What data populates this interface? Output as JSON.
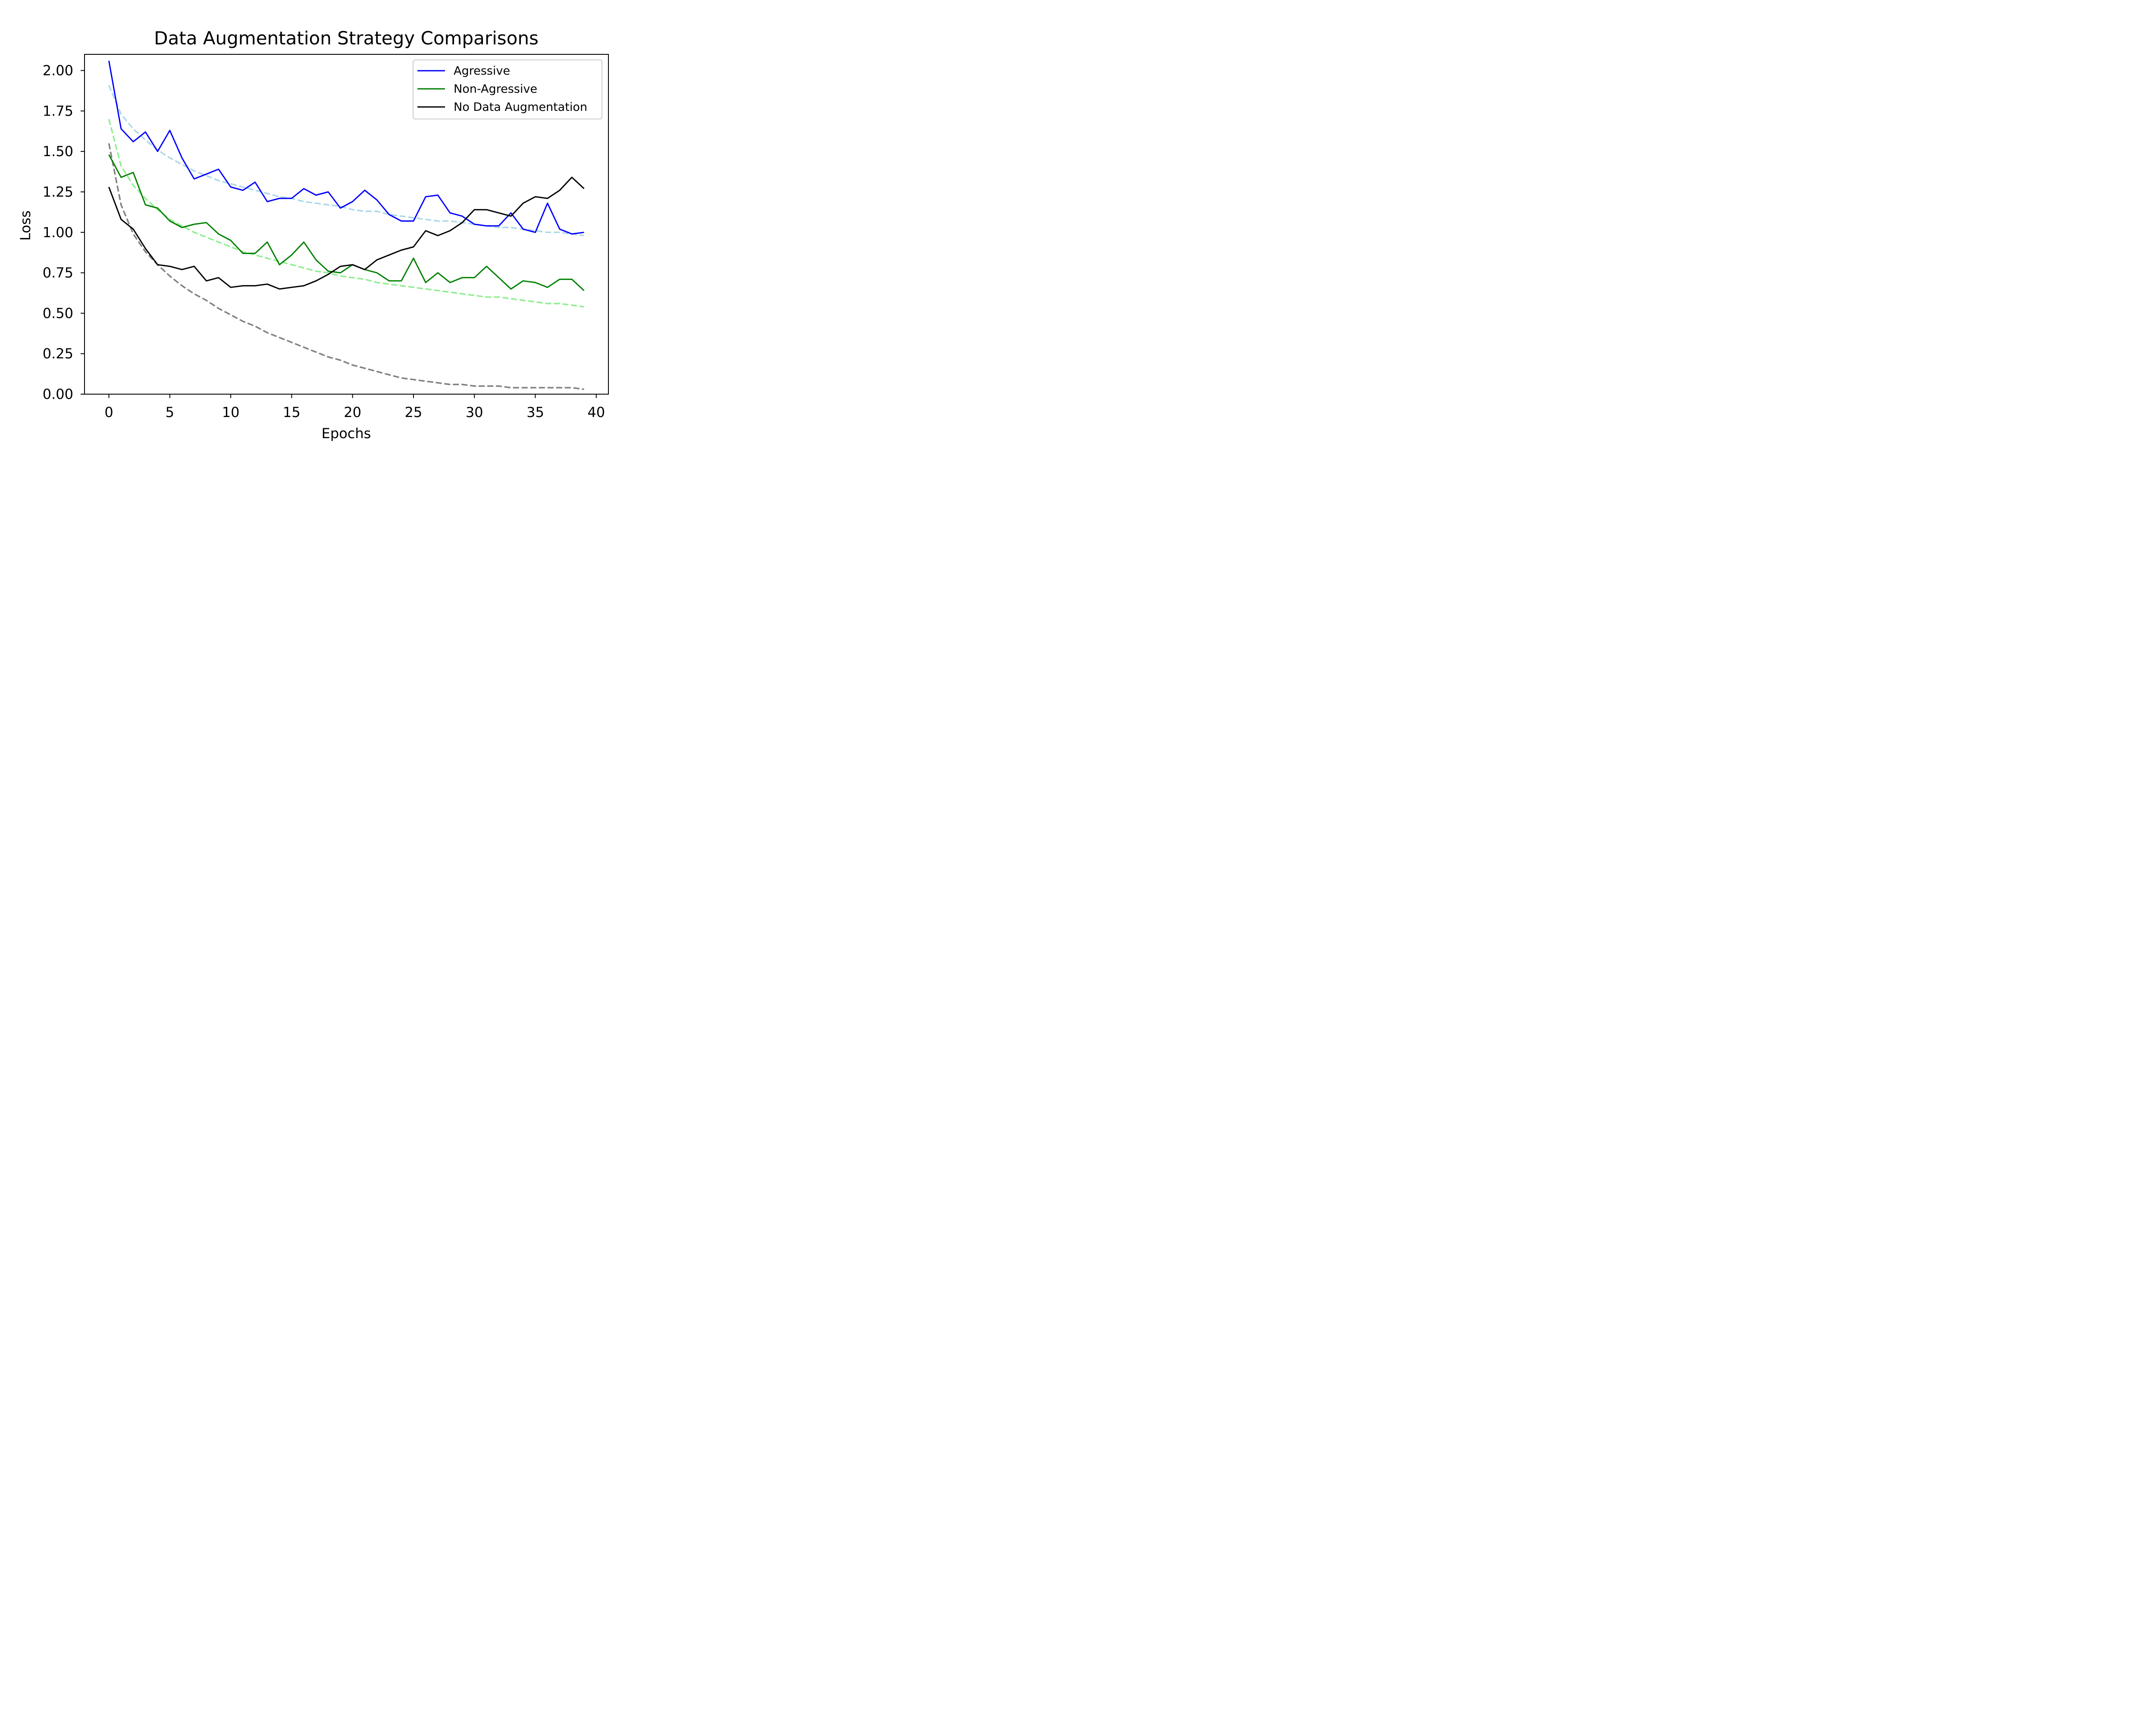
{
  "chart_data": {
    "type": "line",
    "title": "Data Augmentation Strategy Comparisons",
    "xlabel": "Epochs",
    "ylabel": "Loss",
    "xlim": [
      -2,
      41
    ],
    "ylim": [
      0,
      2.1
    ],
    "xticks": [
      0,
      5,
      10,
      15,
      20,
      25,
      30,
      35,
      40
    ],
    "xtick_labels": [
      "0",
      "5",
      "10",
      "15",
      "20",
      "25",
      "30",
      "35",
      "40"
    ],
    "yticks": [
      0,
      0.25,
      0.5,
      0.75,
      1.0,
      1.25,
      1.5,
      1.75,
      2.0
    ],
    "ytick_labels": [
      "0.00",
      "0.25",
      "0.50",
      "0.75",
      "1.00",
      "1.25",
      "1.50",
      "1.75",
      "2.00"
    ],
    "grid": false,
    "legend_position": "top-right",
    "x": [
      0,
      1,
      2,
      3,
      4,
      5,
      6,
      7,
      8,
      9,
      10,
      11,
      12,
      13,
      14,
      15,
      16,
      17,
      18,
      19,
      20,
      21,
      22,
      23,
      24,
      25,
      26,
      27,
      28,
      29,
      30,
      31,
      32,
      33,
      34,
      35,
      36,
      37,
      38,
      39
    ],
    "series": [
      {
        "name": "Agressive",
        "color": "#0000ff",
        "style": "solid",
        "values": [
          2.06,
          1.64,
          1.56,
          1.62,
          1.5,
          1.63,
          1.46,
          1.33,
          1.36,
          1.39,
          1.28,
          1.26,
          1.31,
          1.19,
          1.21,
          1.21,
          1.27,
          1.23,
          1.25,
          1.15,
          1.19,
          1.26,
          1.2,
          1.11,
          1.07,
          1.07,
          1.22,
          1.23,
          1.12,
          1.1,
          1.05,
          1.04,
          1.04,
          1.12,
          1.02,
          1.0,
          1.18,
          1.02,
          0.99,
          1.0
        ]
      },
      {
        "name": "Non-Agressive",
        "color": "#008000",
        "style": "solid",
        "values": [
          1.48,
          1.34,
          1.37,
          1.17,
          1.15,
          1.07,
          1.03,
          1.05,
          1.06,
          0.99,
          0.95,
          0.87,
          0.87,
          0.94,
          0.8,
          0.86,
          0.94,
          0.83,
          0.76,
          0.75,
          0.8,
          0.77,
          0.75,
          0.7,
          0.7,
          0.84,
          0.69,
          0.75,
          0.69,
          0.72,
          0.72,
          0.79,
          0.72,
          0.65,
          0.7,
          0.69,
          0.66,
          0.71,
          0.71,
          0.64
        ]
      },
      {
        "name": "No Data Augmentation",
        "color": "#000000",
        "style": "solid",
        "values": [
          1.28,
          1.08,
          1.02,
          0.9,
          0.8,
          0.79,
          0.77,
          0.79,
          0.7,
          0.72,
          0.66,
          0.67,
          0.67,
          0.68,
          0.65,
          0.66,
          0.67,
          0.7,
          0.74,
          0.79,
          0.8,
          0.77,
          0.83,
          0.86,
          0.89,
          0.91,
          1.01,
          0.98,
          1.01,
          1.06,
          1.14,
          1.14,
          1.12,
          1.1,
          1.18,
          1.22,
          1.21,
          1.26,
          1.34,
          1.27
        ]
      },
      {
        "color": "#add8e6",
        "style": "dashed",
        "values": [
          1.91,
          1.73,
          1.64,
          1.57,
          1.51,
          1.46,
          1.42,
          1.38,
          1.35,
          1.32,
          1.3,
          1.28,
          1.26,
          1.24,
          1.22,
          1.21,
          1.19,
          1.18,
          1.17,
          1.16,
          1.14,
          1.13,
          1.13,
          1.11,
          1.1,
          1.09,
          1.08,
          1.07,
          1.07,
          1.06,
          1.05,
          1.04,
          1.03,
          1.03,
          1.02,
          1.01,
          1.0,
          1.0,
          0.99,
          0.98
        ]
      },
      {
        "color": "#90ee90",
        "style": "dashed",
        "values": [
          1.7,
          1.41,
          1.29,
          1.21,
          1.14,
          1.08,
          1.04,
          1.0,
          0.97,
          0.94,
          0.91,
          0.88,
          0.86,
          0.84,
          0.82,
          0.8,
          0.78,
          0.76,
          0.75,
          0.73,
          0.72,
          0.71,
          0.69,
          0.68,
          0.67,
          0.66,
          0.65,
          0.64,
          0.63,
          0.62,
          0.61,
          0.6,
          0.6,
          0.59,
          0.58,
          0.57,
          0.56,
          0.56,
          0.55,
          0.54
        ]
      },
      {
        "color": "#808080",
        "style": "dashed",
        "values": [
          1.55,
          1.17,
          0.99,
          0.88,
          0.8,
          0.73,
          0.67,
          0.62,
          0.58,
          0.53,
          0.49,
          0.45,
          0.42,
          0.38,
          0.35,
          0.32,
          0.29,
          0.26,
          0.23,
          0.21,
          0.18,
          0.16,
          0.14,
          0.12,
          0.1,
          0.09,
          0.08,
          0.07,
          0.06,
          0.06,
          0.05,
          0.05,
          0.05,
          0.04,
          0.04,
          0.04,
          0.04,
          0.04,
          0.04,
          0.03
        ]
      }
    ]
  }
}
